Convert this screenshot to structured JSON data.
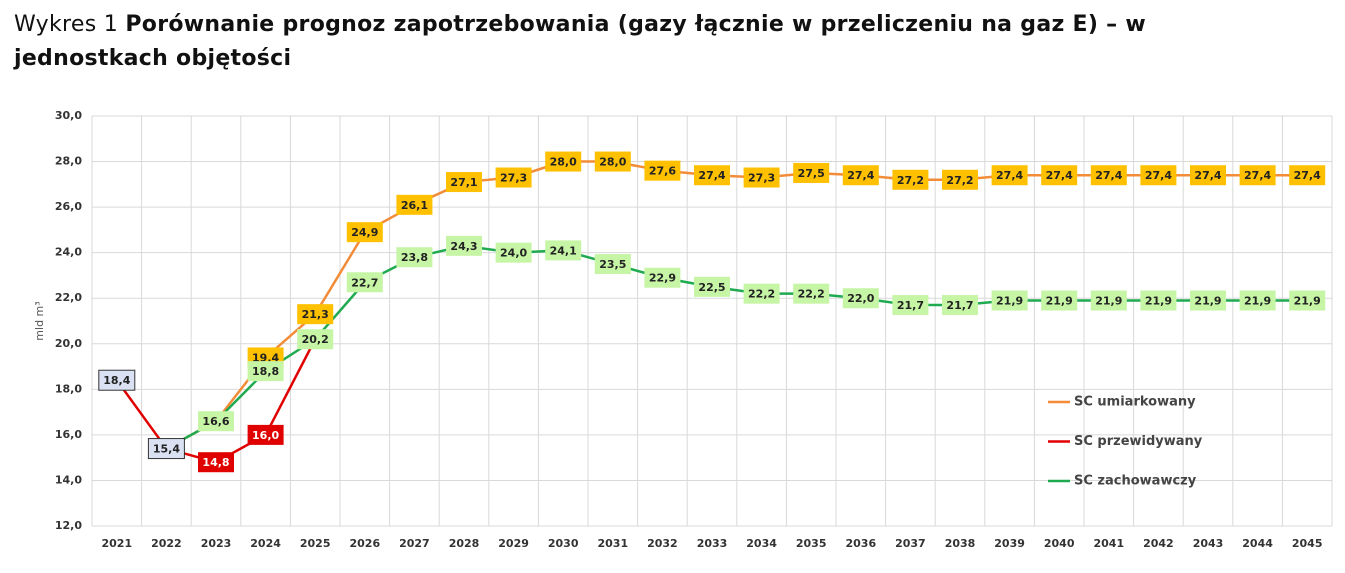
{
  "chart_data": {
    "type": "line",
    "label": "Wykres 1",
    "title": "Porównanie prognoz zapotrzebowania (gazy łącznie w przeliczeniu na gaz E) – w jednostkach objętości",
    "y_label": "mld m³",
    "categories": [
      "2021",
      "2022",
      "2023",
      "2024",
      "2025",
      "2026",
      "2027",
      "2028",
      "2029",
      "2030",
      "2031",
      "2032",
      "2033",
      "2034",
      "2035",
      "2036",
      "2037",
      "2038",
      "2039",
      "2040",
      "2041",
      "2042",
      "2043",
      "2044",
      "2045"
    ],
    "ylim": [
      12,
      30
    ],
    "yticks": [
      {
        "value": 12,
        "label": "12,0"
      },
      {
        "value": 14,
        "label": "14,0"
      },
      {
        "value": 16,
        "label": "16,0"
      },
      {
        "value": 18,
        "label": "18,0"
      },
      {
        "value": 20,
        "label": "20,0"
      },
      {
        "value": 22,
        "label": "22,0"
      },
      {
        "value": 24,
        "label": "24,0"
      },
      {
        "value": 26,
        "label": "26,0"
      },
      {
        "value": 28,
        "label": "28,0"
      },
      {
        "value": 30,
        "label": "30,0"
      }
    ],
    "grid": true,
    "legend": "right",
    "series": [
      {
        "name": "SC umiarkowany",
        "color": "#f28c38",
        "label_color": "#ffc000",
        "label_text_color": "#222222",
        "values": [
          null,
          15.4,
          16.6,
          19.4,
          21.3,
          24.9,
          26.1,
          27.1,
          27.3,
          28.0,
          28.0,
          27.6,
          27.4,
          27.3,
          27.5,
          27.4,
          27.2,
          27.2,
          27.4,
          27.4,
          27.4,
          27.4,
          27.4,
          27.4,
          27.4
        ],
        "value_labels": [
          null,
          null,
          null,
          "19,4",
          "21,3",
          "24,9",
          "26,1",
          "27,1",
          "27,3",
          "28,0",
          "28,0",
          "27,6",
          "27,4",
          "27,3",
          "27,5",
          "27,4",
          "27,2",
          "27,2",
          "27,4",
          "27,4",
          "27,4",
          "27,4",
          "27,4",
          "27,4",
          "27,4"
        ]
      },
      {
        "name": "SC przewidywany",
        "color": "#e00000",
        "label_color": "#e00000",
        "label_text_color": "#ffffff",
        "history_label_color": "#d9e1f2",
        "history_label_text_color": "#222222",
        "history_count": 2,
        "values": [
          18.4,
          15.4,
          14.8,
          16.0,
          20.2,
          null,
          null,
          null,
          null,
          null,
          null,
          null,
          null,
          null,
          null,
          null,
          null,
          null,
          null,
          null,
          null,
          null,
          null,
          null,
          null
        ],
        "value_labels": [
          "18,4",
          "15,4",
          "14,8",
          "16,0",
          null,
          null,
          null,
          null,
          null,
          null,
          null,
          null,
          null,
          null,
          null,
          null,
          null,
          null,
          null,
          null,
          null,
          null,
          null,
          null,
          null
        ]
      },
      {
        "name": "SC zachowawczy",
        "color": "#1faa50",
        "label_color": "#c6f5a6",
        "label_text_color": "#222222",
        "values": [
          null,
          15.4,
          16.6,
          18.8,
          20.2,
          22.7,
          23.8,
          24.3,
          24.0,
          24.1,
          23.5,
          22.9,
          22.5,
          22.2,
          22.2,
          22.0,
          21.7,
          21.7,
          21.9,
          21.9,
          21.9,
          21.9,
          21.9,
          21.9,
          21.9
        ],
        "value_labels": [
          null,
          null,
          "16,6",
          "18,8",
          "20,2",
          "22,7",
          "23,8",
          "24,3",
          "24,0",
          "24,1",
          "23,5",
          "22,9",
          "22,5",
          "22,2",
          "22,2",
          "22,0",
          "21,7",
          "21,7",
          "21,9",
          "21,9",
          "21,9",
          "21,9",
          "21,9",
          "21,9",
          "21,9"
        ]
      }
    ]
  }
}
